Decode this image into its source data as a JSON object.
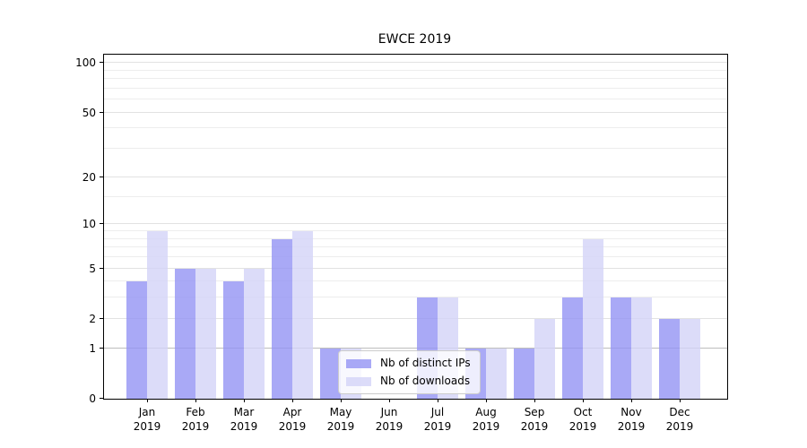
{
  "chart_data": {
    "type": "bar",
    "title": "EWCE 2019",
    "categories": [
      "Jan",
      "Feb",
      "Mar",
      "Apr",
      "May",
      "Jun",
      "Jul",
      "Aug",
      "Sep",
      "Oct",
      "Nov",
      "Dec"
    ],
    "category_year": "2019",
    "series": [
      {
        "name": "Nb of distinct IPs",
        "color": "rgba(148,148,244,0.8)",
        "values": [
          4,
          5,
          4,
          8,
          1,
          0,
          3,
          1,
          1,
          3,
          3,
          2
        ]
      },
      {
        "name": "Nb of downloads",
        "color": "rgba(211,211,248,0.8)",
        "values": [
          9,
          5,
          5,
          9,
          1,
          0,
          3,
          1,
          2,
          8,
          3,
          2
        ]
      }
    ],
    "yscale": "log10(value+1)",
    "ylim": [
      0,
      112
    ],
    "ytick_values": [
      0,
      1,
      2,
      5,
      10,
      20,
      50,
      100
    ],
    "yminor_values": [
      3,
      4,
      6,
      7,
      8,
      9,
      15,
      30,
      40,
      60,
      70,
      80,
      90
    ],
    "emphasized_gridline_value": 1,
    "grid": "horizontal",
    "legend_position": "lower center"
  },
  "colors": {
    "background": "#ffffff",
    "axis": "#000000",
    "gridline_minor": "#ededed",
    "gridline_major": "#e2e2e2",
    "gridline_emphasis": "#bdbdbd",
    "legend_border": "#cccccc"
  }
}
